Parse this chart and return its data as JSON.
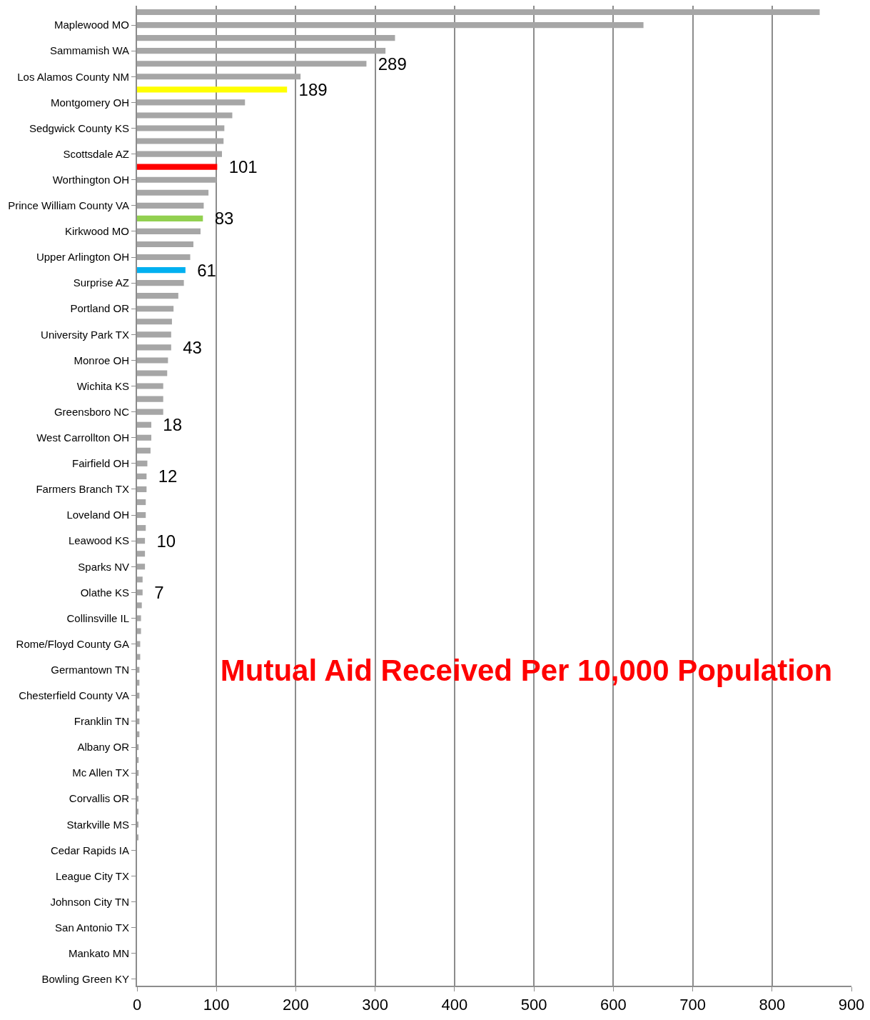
{
  "chart_data": {
    "type": "bar",
    "orientation": "horizontal",
    "title": "Mutual Aid Received Per 10,000 Population",
    "categories": [
      null,
      "Maplewood MO",
      null,
      "Sammamish WA",
      null,
      "Los Alamos County NM",
      null,
      "Montgomery OH",
      null,
      "Sedgwick County KS",
      null,
      "Scottsdale AZ",
      null,
      "Worthington OH",
      null,
      "Prince William County VA",
      null,
      "Kirkwood MO",
      null,
      "Upper Arlington OH",
      null,
      "Surprise AZ",
      null,
      "Portland OR",
      null,
      "University Park TX",
      null,
      "Monroe OH",
      null,
      "Wichita KS",
      null,
      "Greensboro NC",
      null,
      "West Carrollton OH",
      null,
      "Fairfield OH",
      null,
      "Farmers Branch TX",
      null,
      "Loveland OH",
      null,
      "Leawood KS",
      null,
      "Sparks NV",
      null,
      "Olathe KS",
      null,
      "Collinsville IL",
      null,
      "Rome/Floyd County GA",
      null,
      "Germantown TN",
      null,
      "Chesterfield County VA",
      null,
      "Franklin TN",
      null,
      "Albany OR",
      null,
      "Mc Allen TX",
      null,
      "Corvallis OR",
      null,
      "Starkville MS",
      null,
      "Cedar Rapids IA",
      null,
      "League City TX",
      null,
      "Johnson City TN",
      null,
      "San Antonio TX",
      null,
      "Mankato MN",
      null,
      "Bowling Green KY"
    ],
    "values": [
      860,
      638,
      325,
      313,
      289,
      206,
      189,
      136,
      120,
      110,
      109,
      107,
      101,
      100,
      90,
      84,
      83,
      80,
      71,
      67,
      61,
      59,
      52,
      46,
      44,
      43,
      43,
      39,
      38,
      33,
      33,
      33,
      18,
      18,
      17,
      13,
      12,
      12,
      11,
      11,
      11,
      10,
      10,
      10,
      7,
      7,
      6,
      5,
      5,
      4,
      4,
      3,
      3,
      3,
      3,
      3,
      3,
      2,
      2,
      2,
      2,
      1,
      1,
      1,
      1,
      0,
      0,
      0,
      0,
      0,
      0,
      0,
      0,
      0,
      0,
      0
    ],
    "colors": [
      "#a6a6a6",
      "#a6a6a6",
      "#a6a6a6",
      "#a6a6a6",
      "#a6a6a6",
      "#a6a6a6",
      "#ffff00",
      "#a6a6a6",
      "#a6a6a6",
      "#a6a6a6",
      "#a6a6a6",
      "#a6a6a6",
      "#ff0000",
      "#a6a6a6",
      "#a6a6a6",
      "#a6a6a6",
      "#92d050",
      "#a6a6a6",
      "#a6a6a6",
      "#a6a6a6",
      "#00b0f0",
      "#a6a6a6",
      "#a6a6a6",
      "#a6a6a6",
      "#a6a6a6",
      "#a6a6a6",
      "#a6a6a6",
      "#a6a6a6",
      "#a6a6a6",
      "#a6a6a6",
      "#a6a6a6",
      "#a6a6a6",
      "#a6a6a6",
      "#a6a6a6",
      "#a6a6a6",
      "#a6a6a6",
      "#a6a6a6",
      "#a6a6a6",
      "#a6a6a6",
      "#a6a6a6",
      "#a6a6a6",
      "#a6a6a6",
      "#a6a6a6",
      "#a6a6a6",
      "#a6a6a6",
      "#a6a6a6",
      "#a6a6a6",
      "#a6a6a6",
      "#a6a6a6",
      "#a6a6a6",
      "#a6a6a6",
      "#a6a6a6",
      "#a6a6a6",
      "#a6a6a6",
      "#a6a6a6",
      "#a6a6a6",
      "#a6a6a6",
      "#a6a6a6",
      "#a6a6a6",
      "#a6a6a6",
      "#a6a6a6",
      "#a6a6a6",
      "#a6a6a6",
      "#a6a6a6",
      "#a6a6a6",
      "#a6a6a6",
      "#a6a6a6",
      "#a6a6a6",
      "#a6a6a6",
      "#a6a6a6",
      "#a6a6a6",
      "#a6a6a6",
      "#a6a6a6",
      "#a6a6a6",
      "#a6a6a6",
      "#a6a6a6"
    ],
    "value_labels": [
      null,
      null,
      null,
      null,
      "289",
      null,
      "189",
      null,
      null,
      null,
      null,
      null,
      "101",
      null,
      null,
      null,
      "83",
      null,
      null,
      null,
      "61",
      null,
      null,
      null,
      null,
      null,
      "43",
      null,
      null,
      null,
      null,
      null,
      "18",
      null,
      null,
      null,
      "12",
      null,
      null,
      null,
      null,
      "10",
      null,
      null,
      null,
      "7",
      null,
      null,
      null,
      null,
      null,
      null,
      null,
      null,
      null,
      null,
      null,
      null,
      null,
      null,
      null,
      null,
      null,
      null,
      null,
      null,
      null,
      null,
      null,
      null,
      null,
      null,
      null,
      null,
      null,
      null
    ],
    "xlim": [
      0,
      900
    ],
    "xticks": [
      0,
      100,
      200,
      300,
      400,
      500,
      600,
      700,
      800,
      900
    ],
    "grid": "x"
  }
}
